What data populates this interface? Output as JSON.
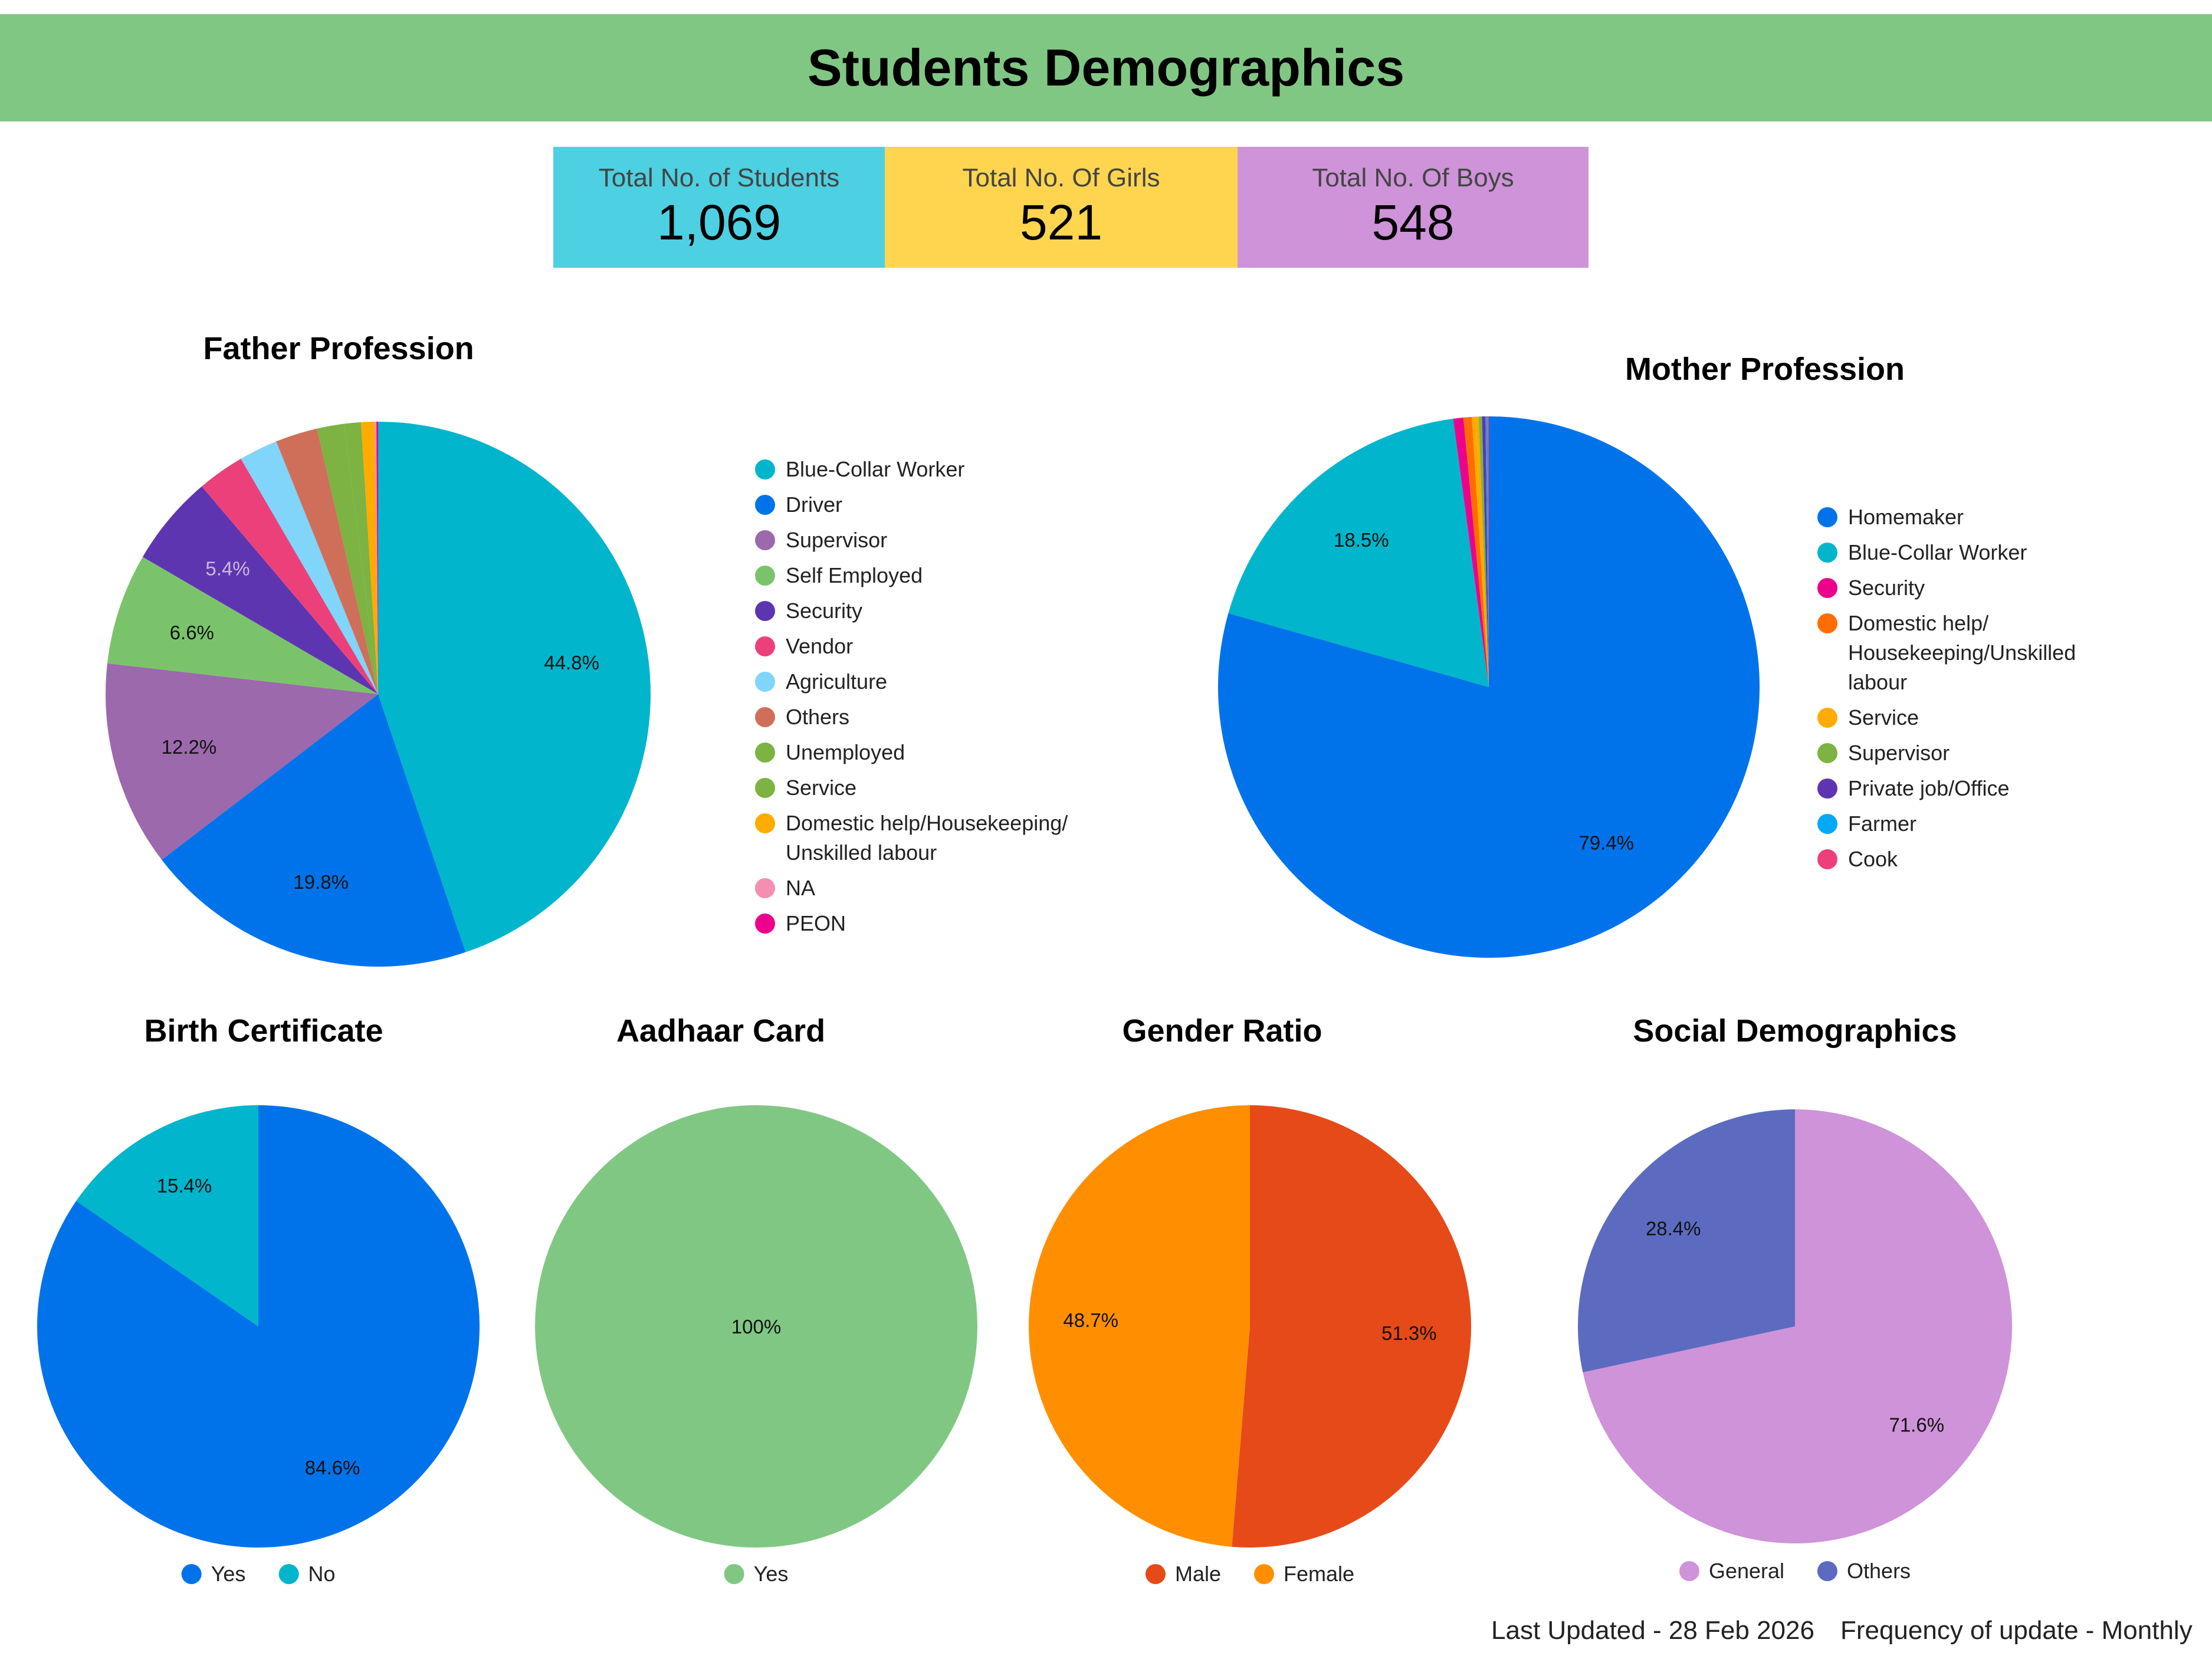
{
  "header": {
    "title": "Students Demographics"
  },
  "kpis": [
    {
      "label": "Total No. of Students",
      "value": "1,069",
      "color": "#4dd0e1"
    },
    {
      "label": "Total No. Of Girls",
      "value": "521",
      "color": "#ffd54f"
    },
    {
      "label": "Total No. Of Boys",
      "value": "548",
      "color": "#ce93d8"
    }
  ],
  "footer": {
    "last_updated": "Last Updated - 28 Feb 2026",
    "frequency": "Frequency of update - Monthly"
  },
  "chart_data": [
    {
      "type": "pie",
      "title": "Father Profession",
      "legend": "right",
      "categories": [
        "Blue-Collar Worker",
        "Driver",
        "Supervisor",
        "Self Employed",
        "Security",
        "Vendor",
        "Agriculture",
        "Others",
        "Unemployed",
        "Service",
        "Domestic help/Housekeeping/ Unskilled labour",
        "NA",
        "PEON"
      ],
      "values": [
        44.8,
        19.8,
        12.2,
        6.6,
        5.4,
        2.8,
        2.3,
        2.5,
        1.6,
        1.0,
        0.8,
        0.1,
        0.1
      ],
      "labels": [
        "44.8%",
        "19.8%",
        "12.2%",
        "6.6%",
        "5.4%",
        "",
        "",
        "",
        "",
        "",
        "",
        "",
        ""
      ],
      "colors": [
        "#00b5cc",
        "#0073ea",
        "#9c69ac",
        "#7bc36b",
        "#5e35b1",
        "#ec407a",
        "#81d4fa",
        "#cf6f5a",
        "#7cb342",
        "#7cb342",
        "#ffab00",
        "#f48fb1",
        "#ec008c"
      ]
    },
    {
      "type": "pie",
      "title": "Mother Profession",
      "legend": "right",
      "categories": [
        "Homemaker",
        "Blue-Collar Worker",
        "Security",
        "Domestic help/ Housekeeping/Unskilled labour",
        "Service",
        "Supervisor",
        "Private job/Office",
        "Farmer",
        "Cook"
      ],
      "values": [
        79.4,
        18.5,
        0.6,
        0.5,
        0.4,
        0.2,
        0.2,
        0.1,
        0.1
      ],
      "labels": [
        "79.4%",
        "18.5%",
        "",
        "",
        "",
        "",
        "",
        "",
        ""
      ],
      "colors": [
        "#0073ea",
        "#00b5cc",
        "#ec008c",
        "#ff6d00",
        "#ffab00",
        "#7cb342",
        "#5e35b1",
        "#03a9f4",
        "#ec407a"
      ]
    },
    {
      "type": "pie",
      "title": "Birth Certificate",
      "legend": "bottom",
      "categories": [
        "Yes",
        "No"
      ],
      "values": [
        84.6,
        15.4
      ],
      "labels": [
        "84.6%",
        "15.4%"
      ],
      "colors": [
        "#0073ea",
        "#00b5cc"
      ]
    },
    {
      "type": "pie",
      "title": "Aadhaar Card",
      "legend": "bottom",
      "categories": [
        "Yes"
      ],
      "values": [
        100
      ],
      "labels": [
        "100%"
      ],
      "colors": [
        "#81c784"
      ]
    },
    {
      "type": "pie",
      "title": "Gender Ratio",
      "legend": "bottom",
      "categories": [
        "Male",
        "Female"
      ],
      "values": [
        51.3,
        48.7
      ],
      "labels": [
        "51.3%",
        "48.7%"
      ],
      "colors": [
        "#e64a19",
        "#ff8f00"
      ]
    },
    {
      "type": "pie",
      "title": "Social Demographics",
      "legend": "bottom",
      "categories": [
        "General",
        "Others"
      ],
      "values": [
        71.6,
        28.4
      ],
      "labels": [
        "71.6%",
        "28.4%"
      ],
      "colors": [
        "#ce93d8",
        "#5c6bc0"
      ]
    }
  ]
}
